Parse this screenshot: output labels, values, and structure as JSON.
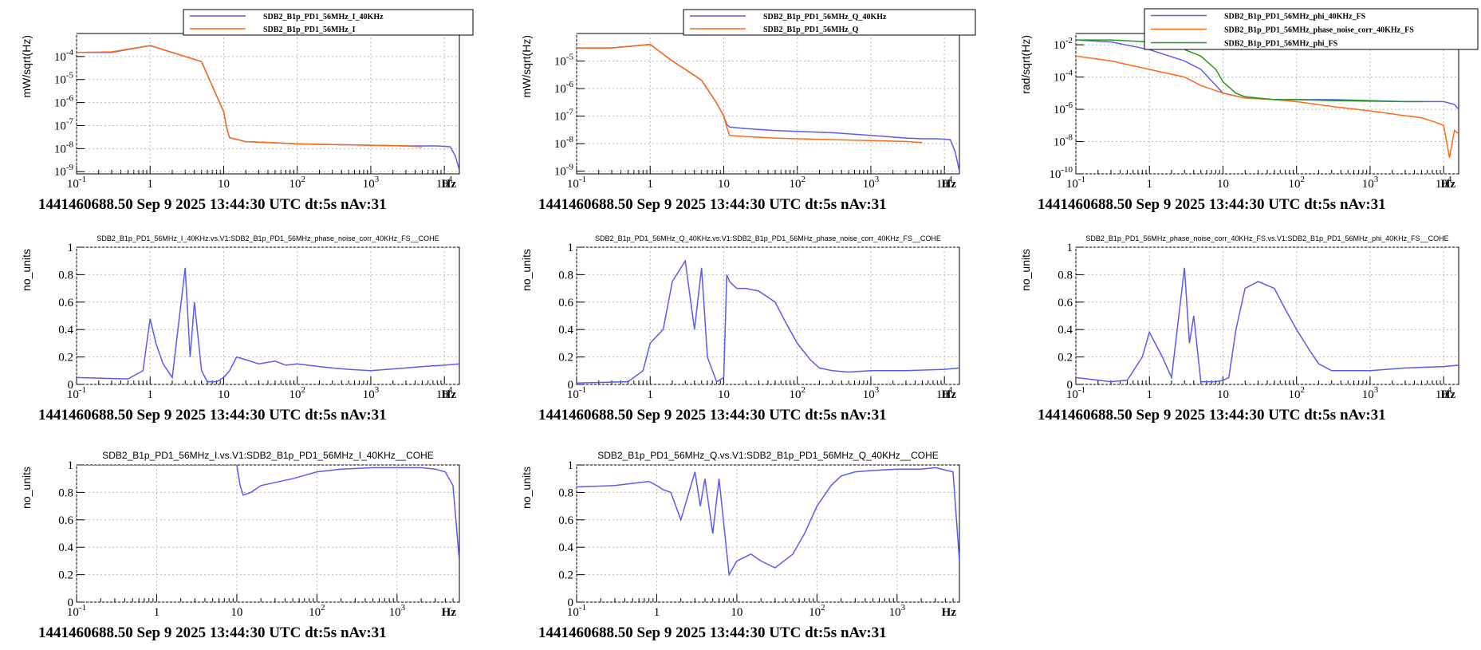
{
  "caption": "1441460688.50 Sep 9 2025 13:44:30 UTC dt:5s nAv:31",
  "colors": {
    "blue": "#5b5bf0",
    "orange": "#ff6a13",
    "green": "#1f9a1f",
    "grid": "#b8b8b8"
  },
  "x_tick_labels": [
    "10-1",
    "1",
    "10",
    "102",
    "103",
    "104"
  ],
  "x_unit": "Hz",
  "chart_data": [
    {
      "id": "asd-i",
      "type": "line",
      "title": "",
      "xscale": "log",
      "yscale": "log",
      "xlim": [
        0.1,
        16000
      ],
      "ylim": [
        8e-10,
        0.001
      ],
      "ylabel": "mW/sqrt(Hz)",
      "y_tick_labels": [
        "10-9",
        "10-8",
        "10-7",
        "10-6",
        "10-5",
        "10-4"
      ],
      "legend": "top",
      "series": [
        {
          "name": "SDB2_B1p_PD1_56MHz_I_40KHz",
          "color": "blue",
          "x": [
            0.1,
            0.3,
            1,
            3,
            5,
            8,
            10,
            11,
            12,
            20,
            50,
            100,
            300,
            1000,
            3000,
            5000,
            8000,
            12000,
            14000,
            16000
          ],
          "y": [
            0.00015,
            0.00015,
            0.0003,
            0.0001,
            6e-05,
            2e-06,
            4e-07,
            8e-08,
            3e-08,
            2e-08,
            1.8e-08,
            1.6e-08,
            1.5e-08,
            1.4e-08,
            1.3e-08,
            1.3e-08,
            1.3e-08,
            1.2e-08,
            5e-09,
            1.2e-09
          ]
        },
        {
          "name": "SDB2_B1p_PD1_56MHz_I",
          "color": "orange",
          "x": [
            0.1,
            0.3,
            1,
            3,
            5,
            8,
            10,
            11,
            12,
            20,
            50,
            100,
            300,
            1000,
            3000,
            5000
          ],
          "y": [
            0.00015,
            0.00016,
            0.0003,
            0.0001,
            6e-05,
            2e-06,
            4e-07,
            8e-08,
            3e-08,
            2e-08,
            1.8e-08,
            1.6e-08,
            1.5e-08,
            1.4e-08,
            1.3e-08,
            1.2e-08
          ]
        }
      ]
    },
    {
      "id": "asd-q",
      "type": "line",
      "title": "",
      "xscale": "log",
      "yscale": "log",
      "xlim": [
        0.1,
        16000
      ],
      "ylim": [
        8e-10,
        0.0001
      ],
      "ylabel": "mW/sqrt(Hz)",
      "y_tick_labels": [
        "10-9",
        "10-8",
        "10-7",
        "10-6",
        "10-5"
      ],
      "legend": "top",
      "series": [
        {
          "name": "SDB2_B1p_PD1_56MHz_Q_40KHz",
          "color": "blue",
          "x": [
            0.1,
            0.3,
            1,
            2,
            3,
            5,
            8,
            10,
            11,
            12,
            20,
            50,
            100,
            300,
            1000,
            3000,
            5000,
            8000,
            12000,
            14000,
            16000
          ],
          "y": [
            3e-05,
            3e-05,
            4e-05,
            1e-05,
            5e-06,
            2e-06,
            3e-07,
            1e-07,
            5e-08,
            4e-08,
            3.5e-08,
            3e-08,
            2.8e-08,
            2.5e-08,
            2e-08,
            1.6e-08,
            1.5e-08,
            1.5e-08,
            1.4e-08,
            5e-09,
            1e-09
          ]
        },
        {
          "name": "SDB2_B1p_PD1_56MHz_Q",
          "color": "orange",
          "x": [
            0.1,
            0.3,
            1,
            2,
            3,
            5,
            8,
            10,
            11,
            12,
            20,
            50,
            100,
            300,
            1000,
            3000,
            5000
          ],
          "y": [
            3e-05,
            3e-05,
            4e-05,
            1e-05,
            5e-06,
            2e-06,
            3e-07,
            1e-07,
            4e-08,
            2e-08,
            1.8e-08,
            1.6e-08,
            1.5e-08,
            1.4e-08,
            1.3e-08,
            1.2e-08,
            1.1e-08
          ]
        }
      ]
    },
    {
      "id": "asd-phi",
      "type": "line",
      "title": "",
      "xscale": "log",
      "yscale": "log",
      "xlim": [
        0.1,
        16000
      ],
      "ylim": [
        1e-10,
        0.05
      ],
      "ylabel": "rad/sqrt(Hz)",
      "y_tick_labels": [
        "10-10",
        "10-8",
        "10-6",
        "10-4",
        "10-2"
      ],
      "legend": "top-right",
      "series": [
        {
          "name": "SDB2_B1p_PD1_56MHz_phi_40KHz_FS",
          "color": "blue",
          "x": [
            0.1,
            0.3,
            1,
            3,
            5,
            10,
            20,
            50,
            100,
            300,
            1000,
            3000,
            5000,
            10000,
            14000,
            16000
          ],
          "y": [
            0.02,
            0.015,
            0.005,
            0.001,
            0.0003,
            1e-05,
            5e-06,
            4e-06,
            4e-06,
            4e-06,
            3.5e-06,
            3e-06,
            3e-06,
            3e-06,
            2e-06,
            1e-06
          ]
        },
        {
          "name": "SDB2_B1p_PD1_56MHz_phase_noise_corr_40KHz_FS",
          "color": "orange",
          "x": [
            0.1,
            0.3,
            1,
            3,
            5,
            10,
            20,
            50,
            100,
            300,
            1000,
            3000,
            5000,
            8000,
            10000,
            12000,
            14000,
            16000
          ],
          "y": [
            0.002,
            0.001,
            0.0003,
            0.0001,
            3e-05,
            1e-05,
            5e-06,
            4e-06,
            3e-06,
            1.5e-06,
            8e-07,
            4e-07,
            3e-07,
            1.5e-07,
            1e-07,
            1e-09,
            5e-08,
            3e-08
          ]
        },
        {
          "name": "SDB2_B1p_PD1_56MHz_phi_FS",
          "color": "green",
          "x": [
            0.1,
            0.3,
            1,
            2,
            3,
            5,
            8,
            10,
            15,
            20,
            50,
            100,
            300,
            1000,
            3000,
            5000
          ],
          "y": [
            0.02,
            0.02,
            0.015,
            0.01,
            0.005,
            0.002,
            0.0003,
            5e-05,
            1e-05,
            6e-06,
            4e-06,
            4e-06,
            3.5e-06,
            3.2e-06,
            3e-06,
            3e-06
          ]
        }
      ]
    },
    {
      "id": "cohe-i-phase",
      "type": "line",
      "title": "SDB2_B1p_PD1_56MHz_I_40KHz.vs.V1:SDB2_B1p_PD1_56MHz_phase_noise_corr_40KHz_FS__COHE",
      "xscale": "log",
      "yscale": "linear",
      "xlim": [
        0.1,
        16000
      ],
      "ylim": [
        0,
        1
      ],
      "ylabel": "no_units",
      "y_tick_labels": [
        "0",
        "0.2",
        "0.4",
        "0.6",
        "0.8",
        "1"
      ],
      "series": [
        {
          "color": "blue",
          "x": [
            0.1,
            0.5,
            0.8,
            1,
            1.2,
            1.5,
            2,
            3,
            3.5,
            4,
            5,
            6,
            8,
            10,
            12,
            15,
            20,
            30,
            50,
            70,
            100,
            200,
            300,
            500,
            1000,
            3000,
            5000,
            10000,
            16000
          ],
          "y": [
            0.05,
            0.04,
            0.1,
            0.48,
            0.3,
            0.15,
            0.05,
            0.85,
            0.2,
            0.6,
            0.1,
            0.02,
            0.02,
            0.05,
            0.1,
            0.2,
            0.18,
            0.15,
            0.17,
            0.14,
            0.15,
            0.13,
            0.12,
            0.11,
            0.1,
            0.12,
            0.13,
            0.14,
            0.15
          ]
        }
      ]
    },
    {
      "id": "cohe-q-phase",
      "type": "line",
      "title": "SDB2_B1p_PD1_56MHz_Q_40KHz.vs.V1:SDB2_B1p_PD1_56MHz_phase_noise_corr_40KHz_FS__COHE",
      "xscale": "log",
      "yscale": "linear",
      "xlim": [
        0.1,
        16000
      ],
      "ylim": [
        0,
        1
      ],
      "ylabel": "no_units",
      "y_tick_labels": [
        "0",
        "0.2",
        "0.4",
        "0.6",
        "0.8",
        "1"
      ],
      "series": [
        {
          "color": "blue",
          "x": [
            0.1,
            0.5,
            0.8,
            1,
            1.5,
            2,
            3,
            4,
            5,
            6,
            8,
            10,
            11,
            12,
            15,
            20,
            30,
            50,
            70,
            100,
            150,
            200,
            300,
            500,
            1000,
            3000,
            10000,
            16000
          ],
          "y": [
            0.01,
            0.02,
            0.1,
            0.3,
            0.4,
            0.75,
            0.9,
            0.4,
            0.85,
            0.2,
            0.02,
            0.05,
            0.8,
            0.75,
            0.7,
            0.7,
            0.68,
            0.6,
            0.45,
            0.3,
            0.18,
            0.12,
            0.1,
            0.09,
            0.1,
            0.1,
            0.11,
            0.12
          ]
        }
      ]
    },
    {
      "id": "cohe-phase-phi",
      "type": "line",
      "title": "SDB2_B1p_PD1_56MHz_phase_noise_corr_40KHz_FS.vs.V1:SDB2_B1p_PD1_56MHz_phi_40KHz_FS__COHE",
      "xscale": "log",
      "yscale": "linear",
      "xlim": [
        0.1,
        16000
      ],
      "ylim": [
        0,
        1
      ],
      "ylabel": "no_units",
      "y_tick_labels": [
        "0",
        "0.2",
        "0.4",
        "0.6",
        "0.8",
        "1"
      ],
      "series": [
        {
          "color": "blue",
          "x": [
            0.1,
            0.3,
            0.5,
            0.8,
            1,
            1.5,
            2,
            3,
            3.5,
            4,
            5,
            8,
            10,
            12,
            15,
            20,
            30,
            50,
            70,
            100,
            150,
            200,
            300,
            500,
            1000,
            3000,
            10000,
            16000
          ],
          "y": [
            0.05,
            0.02,
            0.03,
            0.2,
            0.38,
            0.2,
            0.05,
            0.85,
            0.3,
            0.5,
            0.02,
            0.02,
            0.03,
            0.05,
            0.4,
            0.7,
            0.75,
            0.7,
            0.55,
            0.4,
            0.25,
            0.15,
            0.1,
            0.1,
            0.1,
            0.12,
            0.13,
            0.14
          ]
        }
      ]
    },
    {
      "id": "cohe-i-i40",
      "type": "line",
      "title": "SDB2_B1p_PD1_56MHz_I.vs.V1:SDB2_B1p_PD1_56MHz_I_40KHz__COHE",
      "xscale": "log",
      "yscale": "linear",
      "xlim": [
        0.1,
        6000
      ],
      "ylim": [
        0,
        1
      ],
      "ylabel": "no_units",
      "y_tick_labels": [
        "0",
        "0.2",
        "0.4",
        "0.6",
        "0.8",
        "1"
      ],
      "series": [
        {
          "color": "blue",
          "x": [
            0.1,
            1,
            5,
            10,
            11,
            12,
            15,
            20,
            50,
            100,
            200,
            500,
            1000,
            2000,
            3000,
            4000,
            5000,
            6000
          ],
          "y": [
            1,
            1,
            1,
            1,
            0.85,
            0.78,
            0.8,
            0.85,
            0.9,
            0.95,
            0.97,
            0.98,
            0.98,
            0.98,
            0.97,
            0.95,
            0.85,
            0.3
          ]
        }
      ]
    },
    {
      "id": "cohe-q-q40",
      "type": "line",
      "title": "SDB2_B1p_PD1_56MHz_Q.vs.V1:SDB2_B1p_PD1_56MHz_Q_40KHz__COHE",
      "xscale": "log",
      "yscale": "linear",
      "xlim": [
        0.1,
        6000
      ],
      "ylim": [
        0,
        1
      ],
      "ylabel": "no_units",
      "y_tick_labels": [
        "0",
        "0.2",
        "0.4",
        "0.6",
        "0.8",
        "1"
      ],
      "series": [
        {
          "color": "blue",
          "x": [
            0.1,
            0.3,
            0.8,
            1,
            1.2,
            1.5,
            2,
            3,
            3.5,
            4,
            5,
            6,
            8,
            10,
            15,
            20,
            30,
            50,
            70,
            100,
            150,
            200,
            300,
            500,
            1000,
            2000,
            3000,
            5000,
            6000
          ],
          "y": [
            0.84,
            0.85,
            0.88,
            0.85,
            0.82,
            0.8,
            0.6,
            0.95,
            0.7,
            0.9,
            0.5,
            0.9,
            0.2,
            0.3,
            0.35,
            0.3,
            0.25,
            0.35,
            0.5,
            0.7,
            0.85,
            0.92,
            0.95,
            0.96,
            0.97,
            0.97,
            0.98,
            0.95,
            0.3
          ]
        }
      ]
    }
  ]
}
